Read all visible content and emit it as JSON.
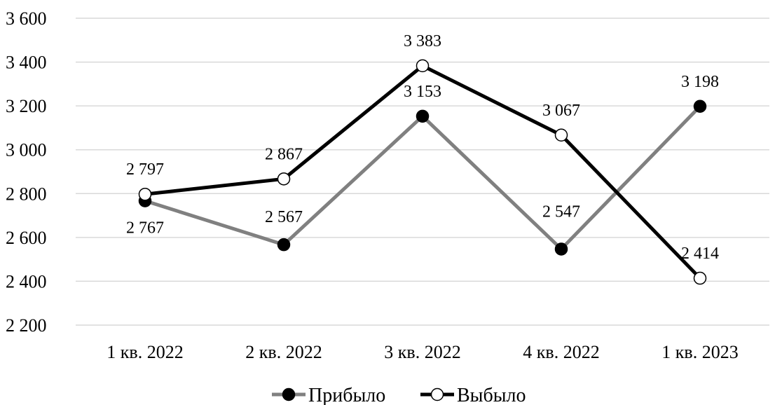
{
  "chart_data": {
    "type": "line",
    "categories": [
      "1 кв. 2022",
      "2 кв. 2022",
      "3 кв. 2022",
      "4 кв. 2022",
      "1  кв. 2023"
    ],
    "ylim": [
      2200,
      3600
    ],
    "yticks": [
      2200,
      2400,
      2600,
      2800,
      3000,
      3200,
      3400,
      3600
    ],
    "ytick_labels": [
      "2 200",
      "2 400",
      "2 600",
      "2 800",
      "3 000",
      "3 200",
      "3 400",
      "3 600"
    ],
    "grid": true,
    "legend_position": "bottom",
    "series": [
      {
        "name": "Прибыло",
        "values": [
          2767,
          2567,
          3153,
          2547,
          3198
        ],
        "labels": [
          "2 767",
          "2 567",
          "3 153",
          "2 547",
          "3 198"
        ],
        "line_color": "#808080",
        "marker": "filled-circle",
        "marker_fill": "#000000"
      },
      {
        "name": "Выбыло",
        "values": [
          2797,
          2867,
          3383,
          3067,
          2414
        ],
        "labels": [
          "2 797",
          "2 867",
          "3 383",
          "3 067",
          "2 414"
        ],
        "line_color": "#000000",
        "marker": "hollow-circle",
        "marker_fill": "#ffffff"
      }
    ]
  }
}
